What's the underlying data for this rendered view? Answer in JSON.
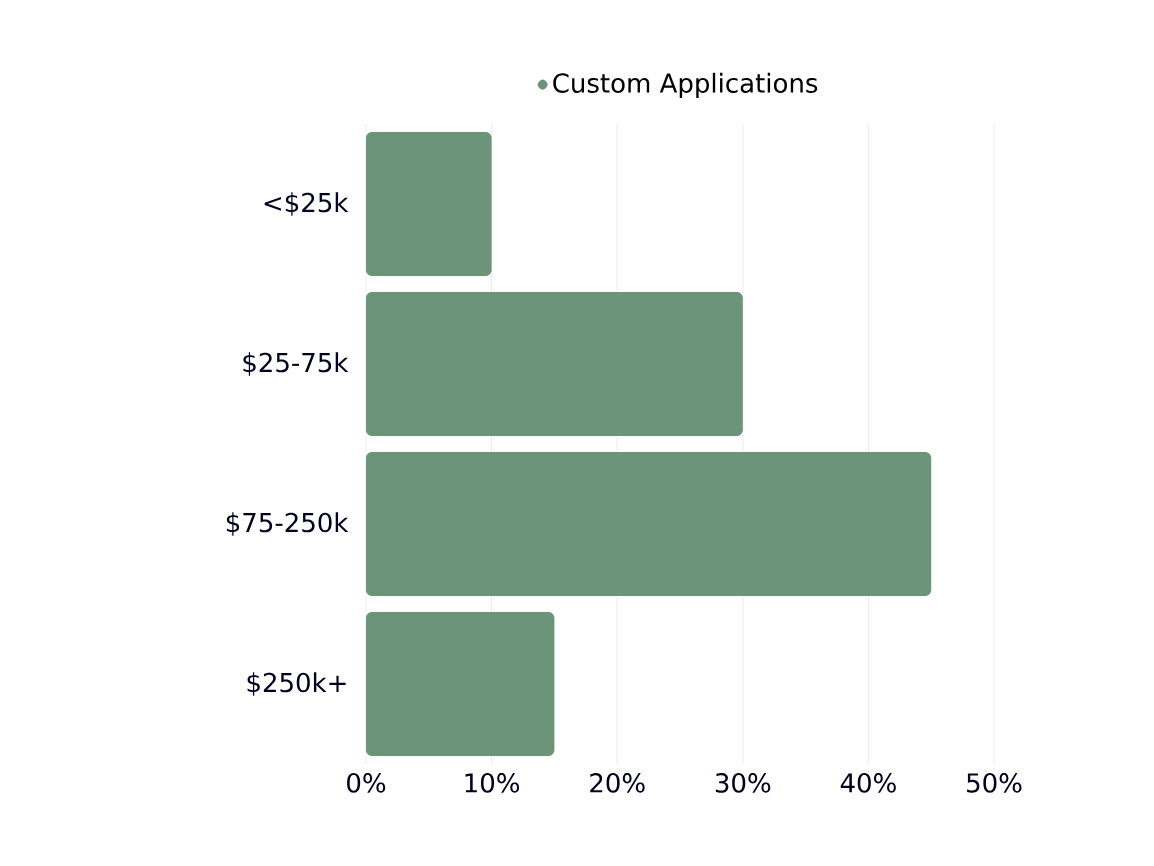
{
  "chart_data": {
    "type": "bar",
    "orientation": "horizontal",
    "categories": [
      "<$25k",
      "$25-75k",
      "$75-250k",
      "$250k+"
    ],
    "series": [
      {
        "name": "Custom Applications",
        "color": "#6b9478",
        "values": [
          10,
          30,
          45,
          15
        ]
      }
    ],
    "xlim": [
      0,
      50
    ],
    "xticks": [
      {
        "value": 0,
        "label": "0%"
      },
      {
        "value": 10,
        "label": "10%"
      },
      {
        "value": 20,
        "label": "20%"
      },
      {
        "value": 30,
        "label": "30%"
      },
      {
        "value": 40,
        "label": "40%"
      },
      {
        "value": 50,
        "label": "50%"
      }
    ],
    "grid": "x",
    "legend": "top"
  }
}
